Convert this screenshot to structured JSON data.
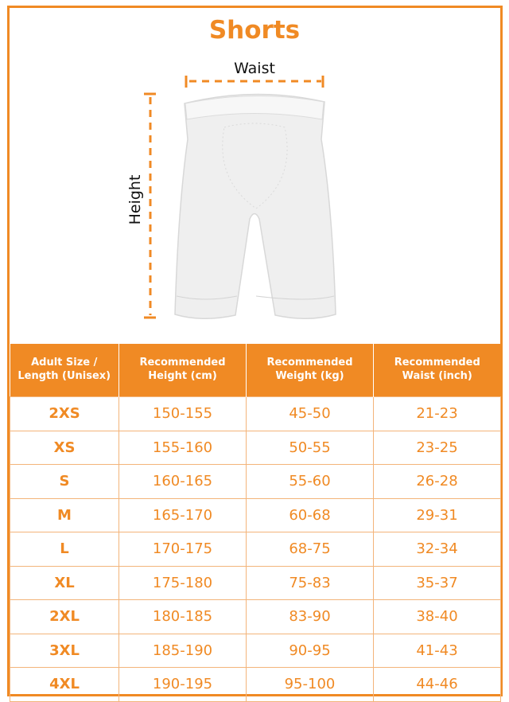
{
  "title": "Shorts",
  "diagram": {
    "waist_label": "Waist",
    "height_label": "Height"
  },
  "colors": {
    "accent": "#f08a24"
  },
  "table": {
    "headers": [
      "Adult Size / Length (Unisex)",
      "Recommended Height (cm)",
      "Recommended Weight (kg)",
      "Recommended Waist (inch)"
    ],
    "rows": [
      [
        "2XS",
        "150-155",
        "45-50",
        "21-23"
      ],
      [
        "XS",
        "155-160",
        "50-55",
        "23-25"
      ],
      [
        "S",
        "160-165",
        "55-60",
        "26-28"
      ],
      [
        "M",
        "165-170",
        "60-68",
        "29-31"
      ],
      [
        "L",
        "170-175",
        "68-75",
        "32-34"
      ],
      [
        "XL",
        "175-180",
        "75-83",
        "35-37"
      ],
      [
        "2XL",
        "180-185",
        "83-90",
        "38-40"
      ],
      [
        "3XL",
        "185-190",
        "90-95",
        "41-43"
      ],
      [
        "4XL",
        "190-195",
        "95-100",
        "44-46"
      ]
    ]
  }
}
